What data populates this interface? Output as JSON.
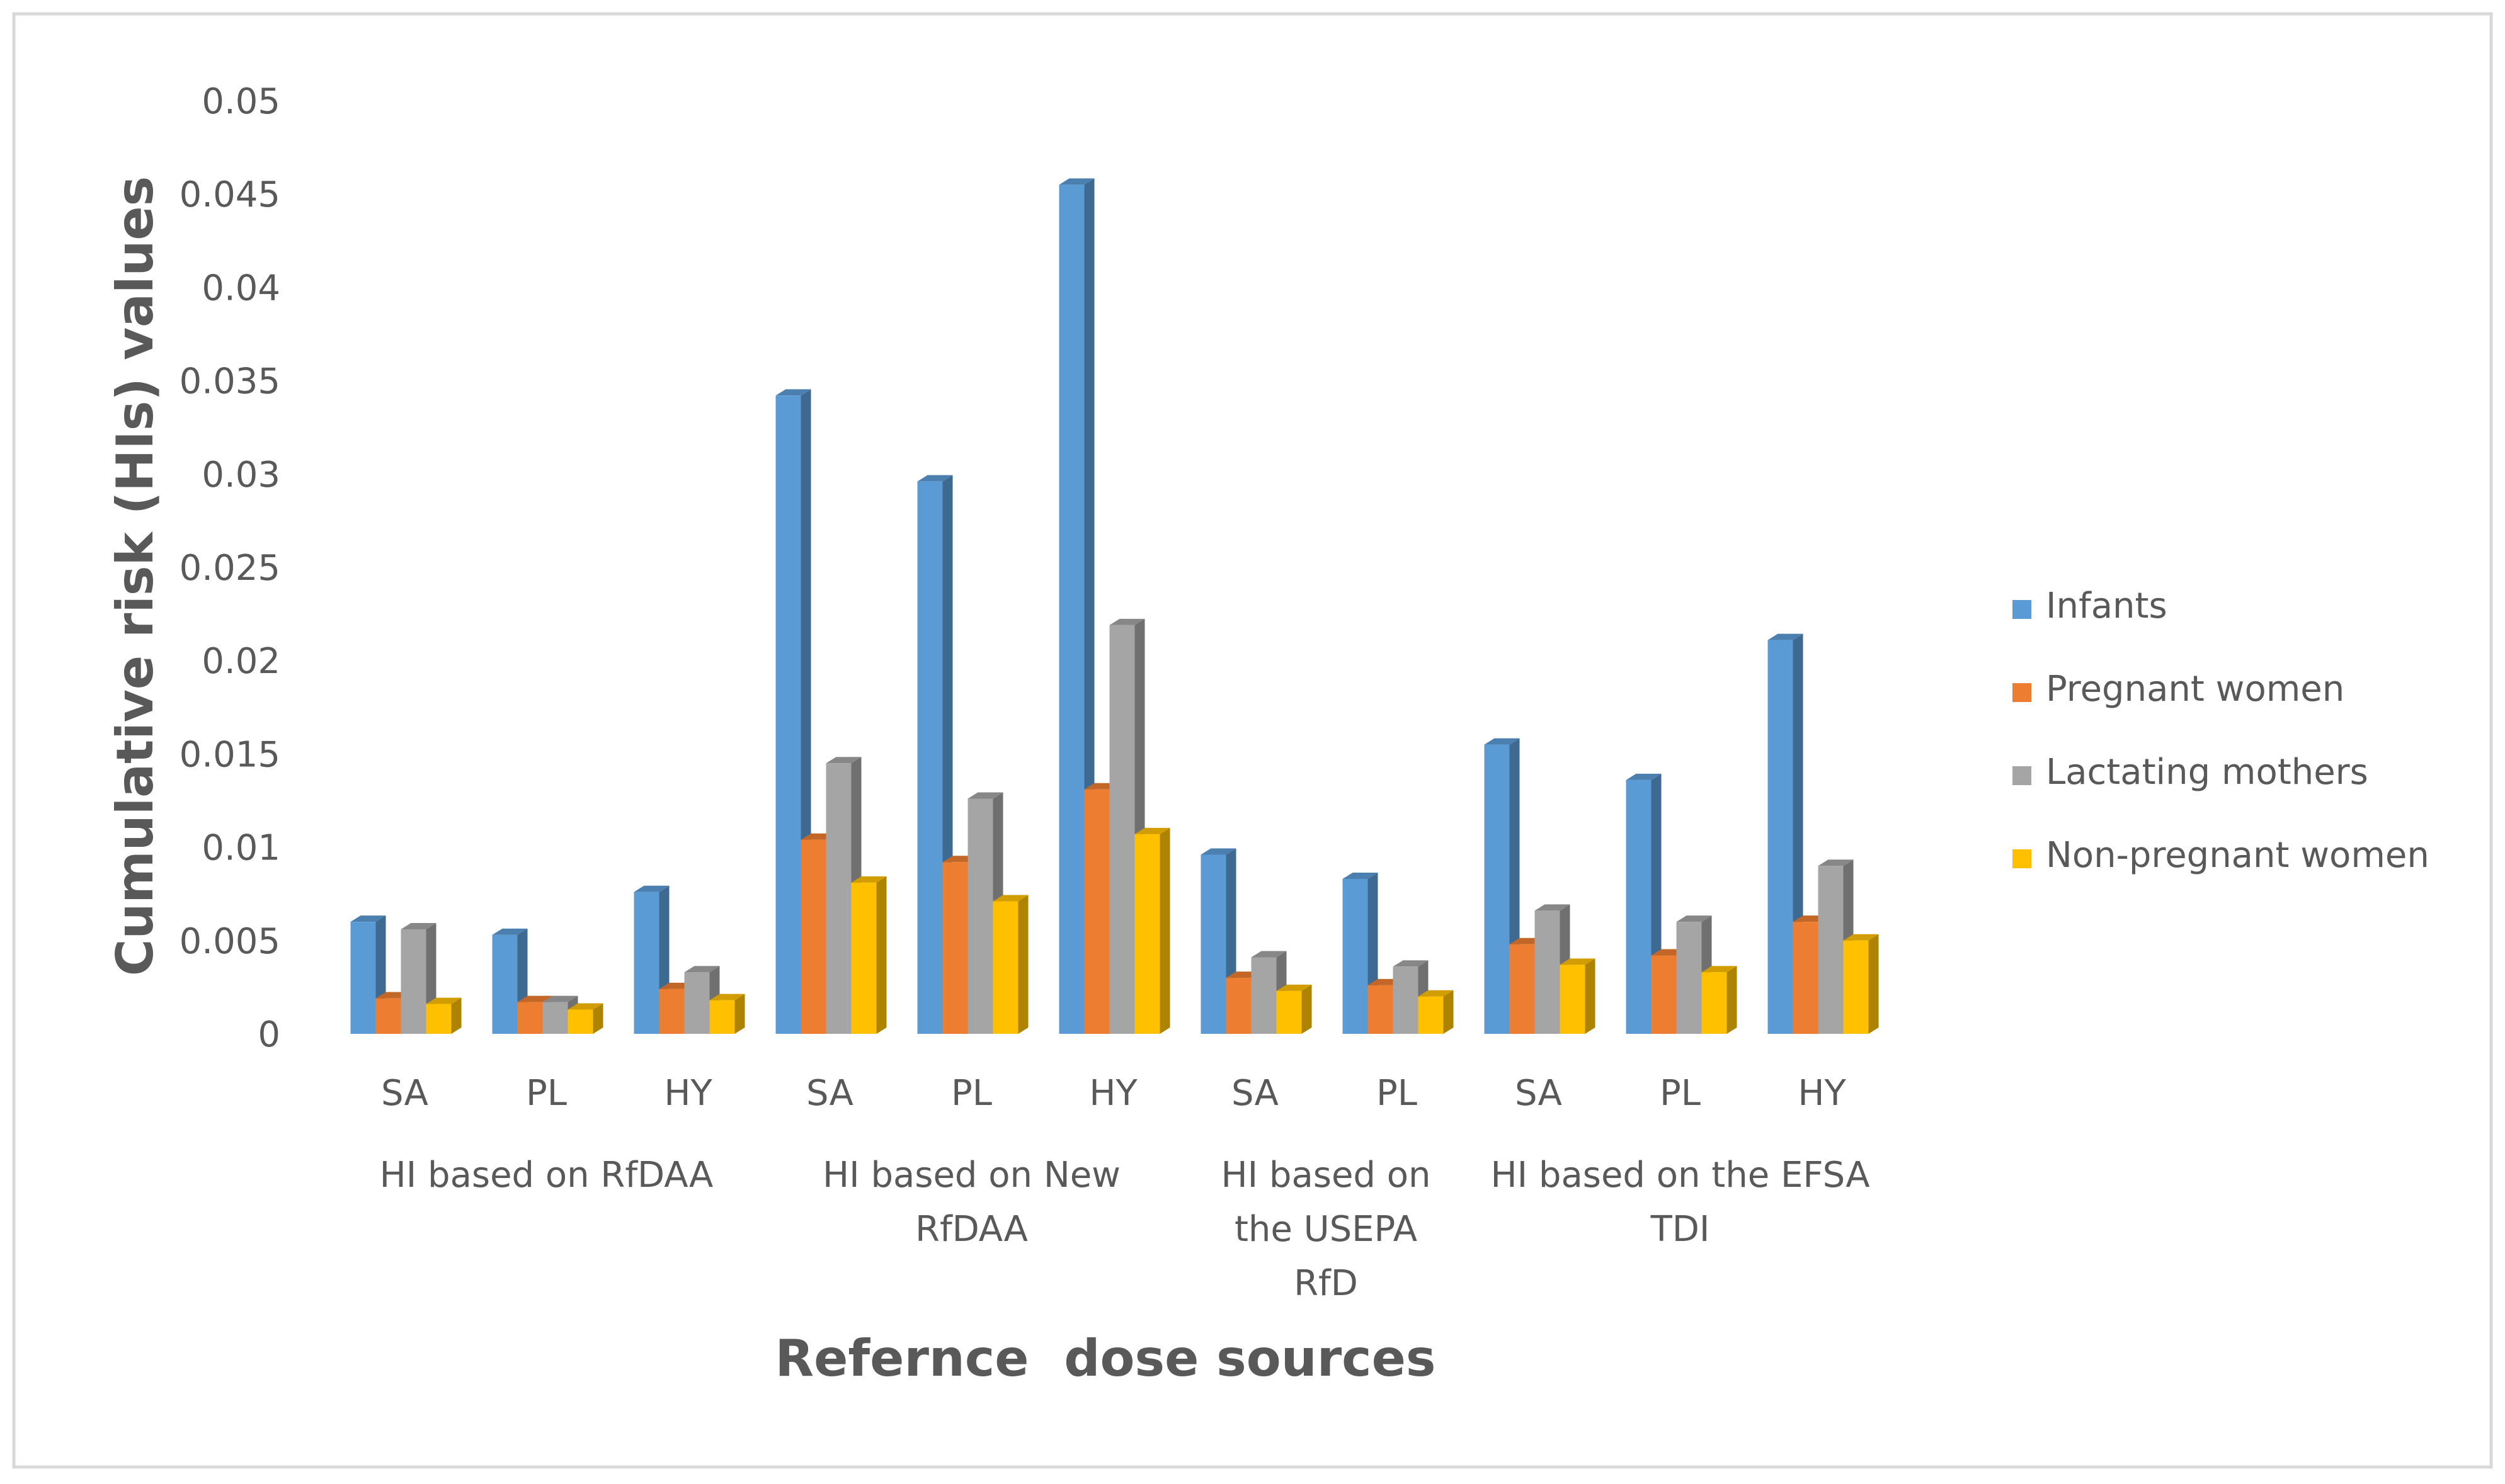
{
  "chart_data": {
    "type": "bar",
    "style": "3d-clustered-column",
    "title": "",
    "xlabel": "Refernce  dose sources",
    "ylabel": "Cumulative risk (HIs) values",
    "ylim": [
      0,
      0.05
    ],
    "yticks": [
      "0",
      "0.005",
      "0.01",
      "0.015",
      "0.02",
      "0.025",
      "0.03",
      "0.035",
      "0.04",
      "0.045",
      "0.05"
    ],
    "grid": false,
    "legend_position": "right",
    "categories": [
      "SA",
      "PL",
      "HY",
      "SA",
      "PL",
      "HY",
      "SA",
      "PL",
      "SA",
      "PL",
      "HY"
    ],
    "groups": [
      {
        "label_lines": [
          "HI based on RfDAA"
        ],
        "start": 0,
        "count": 3
      },
      {
        "label_lines": [
          "HI based on New",
          "RfDAA"
        ],
        "start": 3,
        "count": 3
      },
      {
        "label_lines": [
          "HI based on",
          "the USEPA",
          "RfD"
        ],
        "start": 6,
        "count": 2
      },
      {
        "label_lines": [
          "HI based on the EFSA",
          "TDI"
        ],
        "start": 8,
        "count": 3
      }
    ],
    "series": [
      {
        "name": "Infants",
        "color": "#5B9BD5",
        "values": [
          0.006,
          0.0053,
          0.0076,
          0.0342,
          0.0296,
          0.0455,
          0.0096,
          0.0083,
          0.0155,
          0.0136,
          0.0211
        ]
      },
      {
        "name": "Pregnant women",
        "color": "#ED7D31",
        "values": [
          0.0019,
          0.0017,
          0.0024,
          0.0104,
          0.0092,
          0.0131,
          0.003,
          0.0026,
          0.0048,
          0.0042,
          0.006
        ]
      },
      {
        "name": "Lactating mothers",
        "color": "#A5A5A5",
        "values": [
          0.0056,
          0.0017,
          0.0033,
          0.0145,
          0.0126,
          0.0219,
          0.0041,
          0.0036,
          0.0066,
          0.006,
          0.009
        ]
      },
      {
        "name": "Non-pregnant women",
        "color": "#FFC000",
        "values": [
          0.0016,
          0.0013,
          0.0018,
          0.0081,
          0.0071,
          0.0107,
          0.0023,
          0.002,
          0.0037,
          0.0033,
          0.005
        ]
      }
    ]
  }
}
